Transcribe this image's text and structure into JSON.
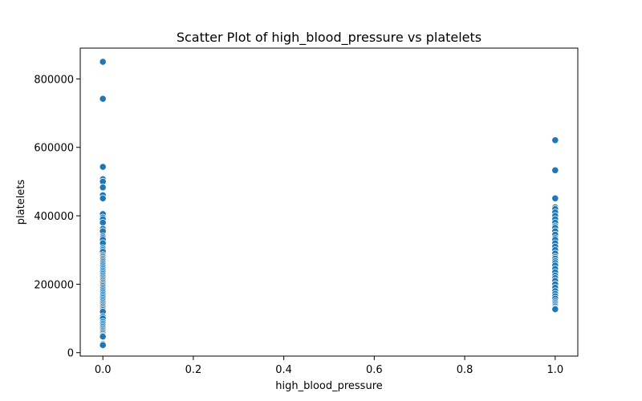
{
  "chart_data": {
    "type": "scatter",
    "title": "Scatter Plot of high_blood_pressure vs platelets",
    "xlabel": "high_blood_pressure",
    "ylabel": "platelets",
    "xlim": [
      -0.05,
      1.05
    ],
    "ylim": [
      -10000,
      890000
    ],
    "xticks": [
      0.0,
      0.2,
      0.4,
      0.6,
      0.8,
      1.0
    ],
    "xtick_labels": [
      "0.0",
      "0.2",
      "0.4",
      "0.6",
      "0.8",
      "1.0"
    ],
    "yticks": [
      0,
      200000,
      400000,
      600000,
      800000
    ],
    "ytick_labels": [
      "0",
      "200000",
      "400000",
      "600000",
      "800000"
    ],
    "grid": false,
    "marker_color": "#1f77b4",
    "marker_edge": "#ffffff",
    "series": [
      {
        "x": [
          0,
          0,
          0,
          0,
          0,
          0,
          0,
          0,
          0,
          0,
          0,
          0,
          0,
          0,
          0,
          0,
          0,
          0,
          0,
          0,
          0,
          0,
          0,
          0,
          0,
          0,
          0,
          0,
          0,
          0,
          0,
          0,
          0,
          0,
          0,
          0,
          0,
          0,
          0,
          0,
          0,
          0,
          0,
          0,
          0,
          0,
          0,
          0,
          0,
          0,
          0,
          0,
          0,
          0,
          0,
          0,
          0,
          0,
          0,
          0,
          0,
          0,
          0,
          0,
          0,
          0,
          0,
          0,
          0
        ],
        "y": [
          850000,
          742000,
          543000,
          507000,
          500000,
          483000,
          460000,
          451000,
          405000,
          395000,
          390000,
          380000,
          362000,
          355000,
          340000,
          335000,
          330000,
          320000,
          305000,
          300000,
          295000,
          285000,
          280000,
          275000,
          270000,
          265000,
          260000,
          255000,
          250000,
          245000,
          240000,
          235000,
          230000,
          225000,
          220000,
          215000,
          210000,
          205000,
          200000,
          195000,
          190000,
          185000,
          180000,
          175000,
          170000,
          165000,
          160000,
          155000,
          150000,
          145000,
          140000,
          135000,
          130000,
          125000,
          120000,
          105000,
          100000,
          90000,
          85000,
          80000,
          75000,
          70000,
          65000,
          60000,
          55000,
          50000,
          47000,
          25000,
          22000
        ]
      },
      {
        "x": [
          1,
          1,
          1,
          1,
          1,
          1,
          1,
          1,
          1,
          1,
          1,
          1,
          1,
          1,
          1,
          1,
          1,
          1,
          1,
          1,
          1,
          1,
          1,
          1,
          1,
          1,
          1,
          1,
          1,
          1,
          1,
          1,
          1,
          1,
          1,
          1,
          1,
          1,
          1,
          1,
          1
        ],
        "y": [
          621000,
          533000,
          451000,
          425000,
          420000,
          410000,
          400000,
          390000,
          380000,
          370000,
          365000,
          355000,
          345000,
          335000,
          330000,
          320000,
          310000,
          300000,
          290000,
          280000,
          275000,
          268000,
          262000,
          255000,
          245000,
          235000,
          225000,
          218000,
          210000,
          200000,
          190000,
          180000,
          172000,
          165000,
          158000,
          150000,
          145000,
          140000,
          135000,
          130000,
          127000
        ]
      }
    ]
  }
}
